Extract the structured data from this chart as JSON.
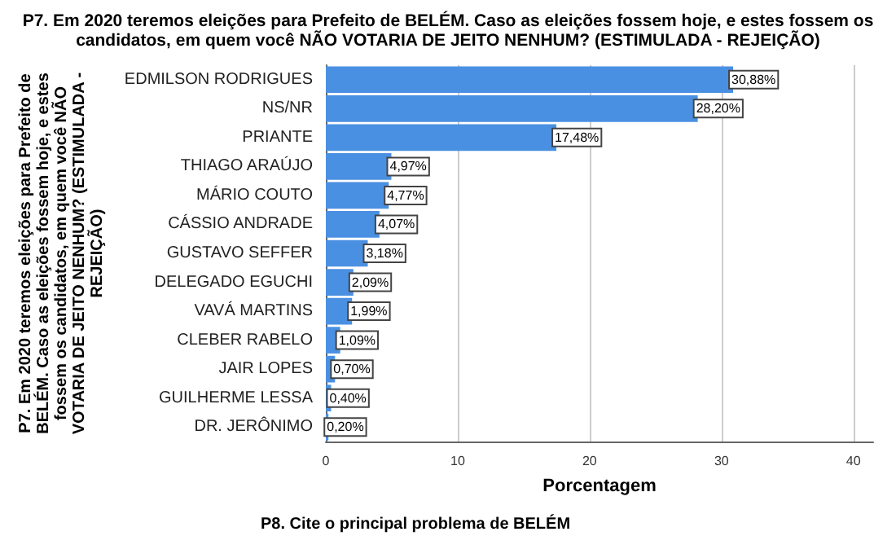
{
  "chart_data": {
    "type": "bar",
    "orientation": "horizontal",
    "title": "P7. Em 2020 teremos eleições para Prefeito de BELÉM. Caso as eleições fossem hoje, e estes fossem os\ncandidatos, em quem você NÃO VOTARIA DE JEITO NENHUM? (ESTIMULADA - REJEIÇÃO)",
    "ylabel": "P7. Em 2020 teremos eleições para Prefeito de\nBELÉM. Caso as eleições fossem hoje, e estes\nfossem os candidatos, em quem você NÃO\nVOTARIA DE JEITO NENHUM? (ESTIMULADA -\nREJEIÇÃO)",
    "xlabel": "Porcentagem",
    "categories": [
      "EDMILSON RODRIGUES",
      "NS/NR",
      "PRIANTE",
      "THIAGO ARAÚJO",
      "MÁRIO COUTO",
      "CÁSSIO ANDRADE",
      "GUSTAVO SEFFER",
      "DELEGADO EGUCHI",
      "VAVÁ MARTINS",
      "CLEBER RABELO",
      "JAIR LOPES",
      "GUILHERME LESSA",
      "DR. JERÔNIMO"
    ],
    "values": [
      30.88,
      28.2,
      17.48,
      4.97,
      4.77,
      4.07,
      3.18,
      2.09,
      1.99,
      1.09,
      0.7,
      0.4,
      0.2
    ],
    "value_labels": [
      "30,88%",
      "28,20%",
      "17,48%",
      "4,97%",
      "4,77%",
      "4,07%",
      "3,18%",
      "2,09%",
      "1,99%",
      "1,09%",
      "0,70%",
      "0,40%",
      "0,20%"
    ],
    "color": "#4a90e2",
    "xlim": [
      0,
      41.5
    ],
    "xticks": [
      0,
      10,
      20,
      30,
      40
    ],
    "grid": "x",
    "annotations": [
      "P8. Cite o principal problema de BELÉM"
    ]
  }
}
